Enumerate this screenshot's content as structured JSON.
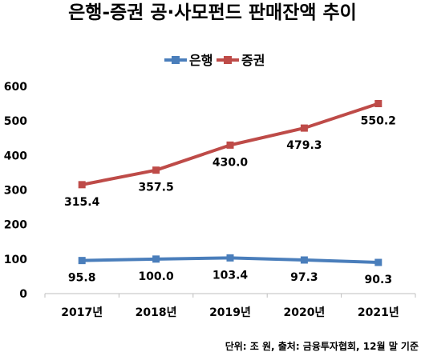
{
  "chart_data": {
    "type": "line",
    "title": "은행-증권 공·사모펀드 판매잔액 추이",
    "categories": [
      "2017년",
      "2018년",
      "2019년",
      "2020년",
      "2021년"
    ],
    "series": [
      {
        "name": "은행",
        "values": [
          95.8,
          100.0,
          103.4,
          97.3,
          90.3
        ],
        "color": "#4a7ebb",
        "labels": [
          "95.8",
          "100.0",
          "103.4",
          "97.3",
          "90.3"
        ]
      },
      {
        "name": "증권",
        "values": [
          315.4,
          357.5,
          430.0,
          479.3,
          550.2
        ],
        "color": "#be4b48",
        "labels": [
          "315.4",
          "357.5",
          "430.0",
          "479.3",
          "550.2"
        ]
      }
    ],
    "ylim": [
      0,
      600
    ],
    "yticks": [
      "0",
      "100",
      "200",
      "300",
      "400",
      "500",
      "600"
    ],
    "grid": false,
    "legend": "top-center",
    "source_note": "단위: 조 원, 출처: 금융투자협회, 12월 말 기준"
  }
}
